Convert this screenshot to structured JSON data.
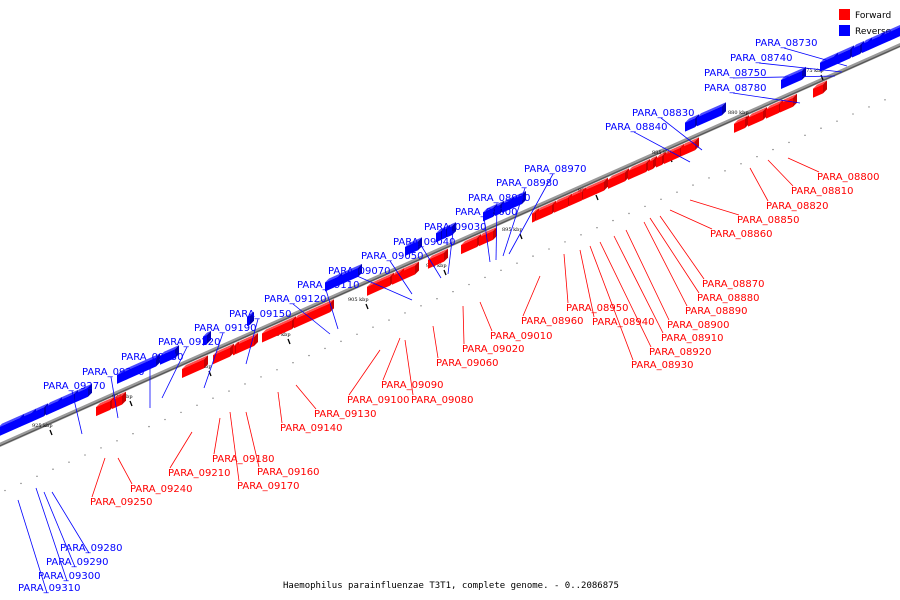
{
  "caption": "Haemophilus parainfluenzae T3T1, complete genome. - 0..2086875",
  "legend": [
    {
      "label": "Forward",
      "color": "#ff0000"
    },
    {
      "label": "Reverse",
      "color": "#0000ff"
    }
  ],
  "colors": {
    "forward": "#ff0000",
    "forward_side": "#c80000",
    "reverse": "#0000ff",
    "reverse_side": "#0000b4",
    "backbone": "#7f7f7f"
  },
  "ticks": [
    "875 kbp",
    "880 kbp",
    "885 kbp",
    "890 kbp",
    "895 kbp",
    "900 kbp",
    "905 kbp",
    "910 kbp",
    "915 kbp",
    "920 kbp",
    "925 kbp"
  ],
  "reverse_genes": [
    "PARA_08730",
    "PARA_08740",
    "PARA_08750",
    "PARA_08780",
    "PARA_08830",
    "PARA_08840",
    "PARA_08970",
    "PARA_08980",
    "PARA_08990",
    "PARA_09000",
    "PARA_09030",
    "PARA_09040",
    "PARA_09050",
    "PARA_09070",
    "PARA_09110",
    "PARA_09120",
    "PARA_09150",
    "PARA_09190",
    "PARA_09220",
    "PARA_09230",
    "PARA_09260",
    "PARA_09270",
    "PARA_09280",
    "PARA_09290",
    "PARA_09300",
    "PARA_09310"
  ],
  "forward_genes": [
    "PARA_08800",
    "PARA_08810",
    "PARA_08820",
    "PARA_08850",
    "PARA_08860",
    "PARA_08870",
    "PARA_08880",
    "PARA_08890",
    "PARA_08900",
    "PARA_08910",
    "PARA_08920",
    "PARA_08930",
    "PARA_08940",
    "PARA_08950",
    "PARA_08960",
    "PARA_09010",
    "PARA_09020",
    "PARA_09060",
    "PARA_09080",
    "PARA_09090",
    "PARA_09100",
    "PARA_09130",
    "PARA_09140",
    "PARA_09160",
    "PARA_09170",
    "PARA_09180",
    "PARA_09210",
    "PARA_09240",
    "PARA_09250"
  ]
}
